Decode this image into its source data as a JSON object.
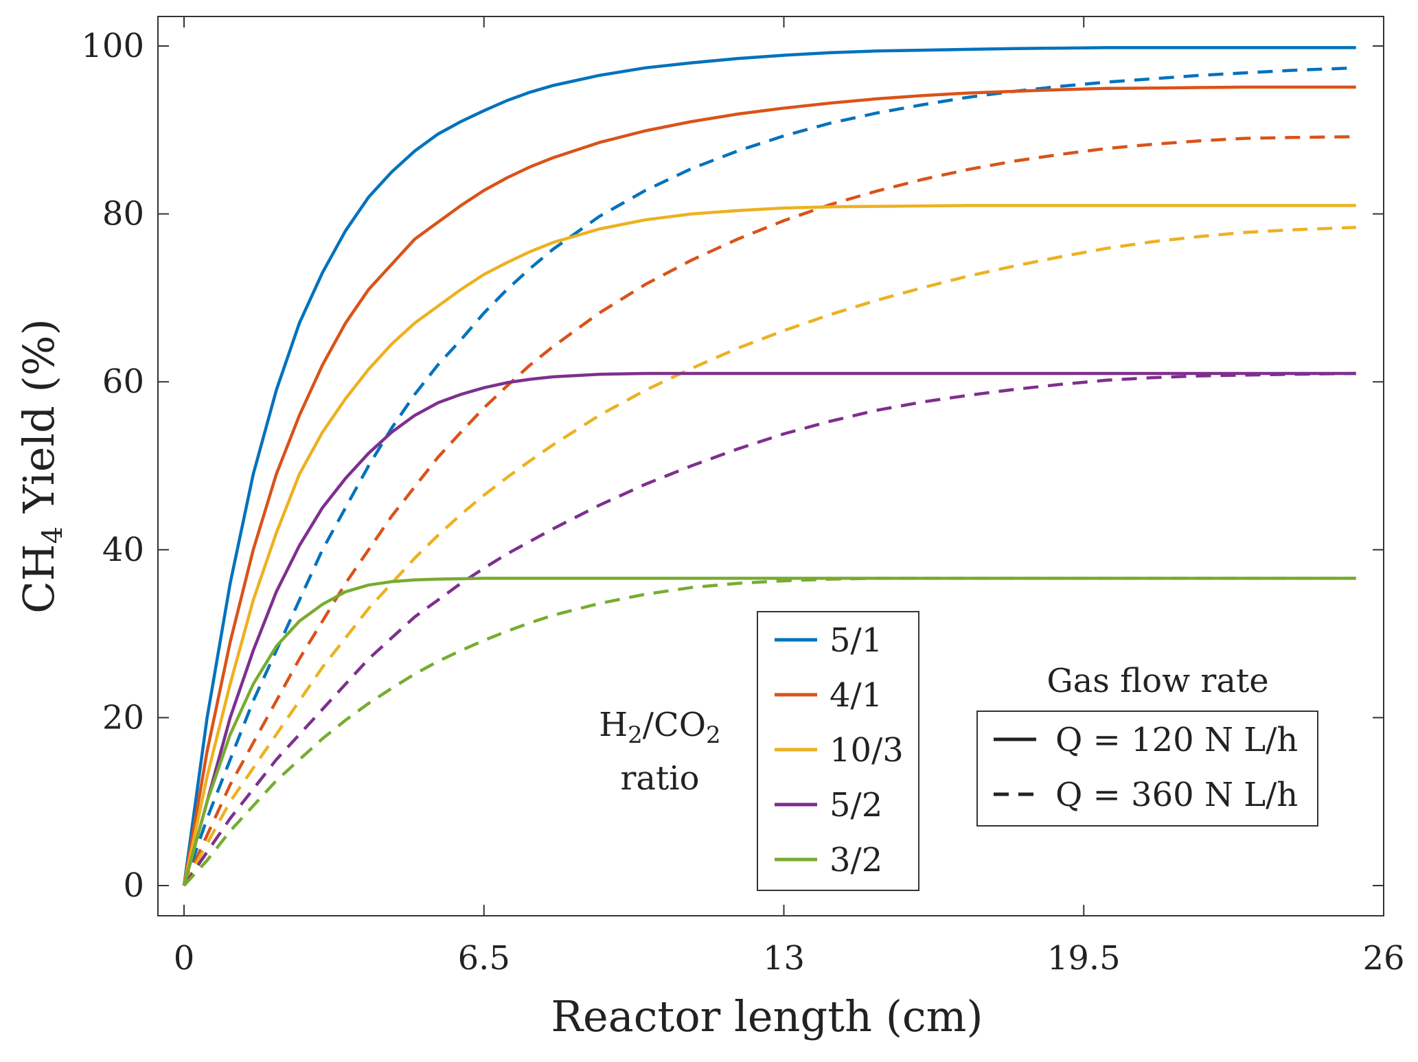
{
  "chart_data": {
    "type": "line",
    "xlabel": "Reactor length (cm)",
    "ylabel": {
      "prefix": "CH",
      "subscript": "4",
      "suffix": " Yield (%)"
    },
    "xlim": [
      0,
      26
    ],
    "ylim": [
      0,
      100
    ],
    "xticks": [
      0,
      6.5,
      13,
      19.5,
      26
    ],
    "xtick_labels": [
      "0",
      "6.5",
      "13",
      "19.5",
      "26"
    ],
    "yticks": [
      0,
      20,
      40,
      60,
      80,
      100
    ],
    "ytick_labels": [
      "0",
      "20",
      "40",
      "60",
      "80",
      "100"
    ],
    "grid": false,
    "x": [
      0,
      0.5,
      1,
      1.5,
      2,
      2.5,
      3,
      3.5,
      4,
      4.5,
      5,
      5.5,
      6,
      6.5,
      7,
      7.5,
      8,
      9,
      10,
      11,
      12,
      13,
      14,
      15,
      16,
      17,
      18,
      19,
      20,
      21,
      22,
      23,
      24,
      25.4
    ],
    "series": [
      {
        "name": "5/1",
        "flow": "Q = 120 N L/h",
        "color": "#0072BD",
        "dash": "solid",
        "values": [
          0,
          20,
          36,
          49,
          59,
          67,
          73,
          78,
          82,
          85,
          87.5,
          89.5,
          91,
          92.3,
          93.5,
          94.5,
          95.3,
          96.5,
          97.4,
          98,
          98.5,
          98.9,
          99.2,
          99.4,
          99.5,
          99.6,
          99.7,
          99.75,
          99.8,
          99.8,
          99.8,
          99.8,
          99.8,
          99.8
        ]
      },
      {
        "name": "4/1",
        "flow": "Q = 120 N L/h",
        "color": "#D95319",
        "dash": "solid",
        "values": [
          0,
          16,
          29,
          40,
          49,
          56,
          62,
          67,
          71,
          74,
          77,
          79,
          81,
          82.8,
          84.3,
          85.6,
          86.7,
          88.5,
          89.9,
          91,
          91.9,
          92.6,
          93.2,
          93.7,
          94.1,
          94.4,
          94.6,
          94.8,
          94.95,
          95,
          95.05,
          95.1,
          95.1,
          95.1
        ]
      },
      {
        "name": "10/3",
        "flow": "Q = 120 N L/h",
        "color": "#EDB120",
        "dash": "solid",
        "values": [
          0,
          13,
          24,
          34,
          42,
          49,
          54,
          58,
          61.5,
          64.5,
          67,
          69,
          71,
          72.8,
          74.2,
          75.5,
          76.6,
          78.2,
          79.3,
          80,
          80.4,
          80.7,
          80.85,
          80.9,
          80.95,
          81,
          81,
          81,
          81,
          81,
          81,
          81,
          81,
          81
        ]
      },
      {
        "name": "5/2",
        "flow": "Q = 120 N L/h",
        "color": "#7E2F8E",
        "dash": "solid",
        "values": [
          0,
          10,
          20,
          28,
          35,
          40.5,
          45,
          48.5,
          51.5,
          54,
          56,
          57.5,
          58.5,
          59.3,
          59.9,
          60.3,
          60.6,
          60.9,
          61,
          61,
          61,
          61,
          61,
          61,
          61,
          61,
          61,
          61,
          61,
          61,
          61,
          61,
          61,
          61
        ]
      },
      {
        "name": "3/2",
        "flow": "Q = 120 N L/h",
        "color": "#77AC30",
        "dash": "solid",
        "values": [
          0,
          10,
          18,
          24,
          28.5,
          31.5,
          33.5,
          35,
          35.8,
          36.2,
          36.4,
          36.5,
          36.55,
          36.6,
          36.6,
          36.6,
          36.6,
          36.6,
          36.6,
          36.6,
          36.6,
          36.6,
          36.6,
          36.6,
          36.6,
          36.6,
          36.6,
          36.6,
          36.6,
          36.6,
          36.6,
          36.6,
          36.6,
          36.6
        ]
      },
      {
        "name": "5/1",
        "flow": "Q = 360 N L/h",
        "color": "#0072BD",
        "dash": "dashed",
        "values": [
          0,
          8,
          15,
          22,
          28,
          34,
          40,
          45,
          50,
          54.5,
          58.5,
          62,
          65,
          68.2,
          71,
          73.5,
          75.8,
          79.7,
          82.8,
          85.4,
          87.5,
          89.3,
          90.8,
          92,
          93,
          93.9,
          94.6,
          95.2,
          95.7,
          96.1,
          96.5,
          96.8,
          97.1,
          97.4
        ]
      },
      {
        "name": "4/1",
        "flow": "Q = 360 N L/h",
        "color": "#D95319",
        "dash": "dashed",
        "values": [
          0,
          6,
          12,
          17,
          22,
          27,
          31.5,
          36,
          40,
          44,
          47.5,
          51,
          54,
          56.9,
          59.5,
          62,
          64.2,
          68.2,
          71.6,
          74.5,
          77,
          79.2,
          81.1,
          82.7,
          84.1,
          85.3,
          86.3,
          87.1,
          87.8,
          88.3,
          88.7,
          89,
          89.1,
          89.2
        ]
      },
      {
        "name": "10/3",
        "flow": "Q = 360 N L/h",
        "color": "#EDB120",
        "dash": "dashed",
        "values": [
          0,
          5,
          10,
          14,
          18,
          22,
          26,
          29.5,
          33,
          36,
          39,
          41.7,
          44.2,
          46.5,
          48.6,
          50.6,
          52.5,
          56,
          59,
          61.6,
          64,
          66.1,
          68,
          69.7,
          71.2,
          72.6,
          73.8,
          74.9,
          75.9,
          76.7,
          77.3,
          77.8,
          78.1,
          78.4
        ]
      },
      {
        "name": "5/2",
        "flow": "Q = 360 N L/h",
        "color": "#7E2F8E",
        "dash": "dashed",
        "values": [
          0,
          4,
          8,
          11.5,
          15,
          18,
          21,
          24,
          27,
          29.5,
          32,
          34,
          36,
          37.8,
          39.5,
          41,
          42.5,
          45.3,
          47.8,
          50,
          52,
          53.8,
          55.3,
          56.6,
          57.6,
          58.4,
          59.1,
          59.7,
          60.2,
          60.5,
          60.7,
          60.8,
          60.9,
          61
        ]
      },
      {
        "name": "3/2",
        "flow": "Q = 360 N L/h",
        "color": "#77AC30",
        "dash": "dashed",
        "values": [
          0,
          3,
          6.5,
          9.5,
          12.5,
          15,
          17.5,
          19.7,
          21.7,
          23.5,
          25.2,
          26.7,
          28,
          29.2,
          30.3,
          31.3,
          32.2,
          33.6,
          34.7,
          35.5,
          36,
          36.3,
          36.5,
          36.6,
          36.6,
          36.6,
          36.6,
          36.6,
          36.6,
          36.6,
          36.6,
          36.6,
          36.6,
          36.6
        ]
      }
    ],
    "legend_ratio": {
      "placement": "bottom-center",
      "title_line1": {
        "prefix": "H",
        "sub1": "2",
        "middle": "/CO",
        "sub2": "2"
      },
      "title_line2": "ratio",
      "entries": [
        {
          "label": "5/1",
          "color": "#0072BD"
        },
        {
          "label": "4/1",
          "color": "#D95319"
        },
        {
          "label": "10/3",
          "color": "#EDB120"
        },
        {
          "label": "5/2",
          "color": "#7E2F8E"
        },
        {
          "label": "3/2",
          "color": "#77AC30"
        }
      ]
    },
    "legend_flow": {
      "placement": "bottom-right",
      "title": "Gas flow rate",
      "entries": [
        {
          "label": "Q = 120 N L/h",
          "dash": "solid"
        },
        {
          "label": "Q = 360 N L/h",
          "dash": "dashed"
        }
      ]
    }
  }
}
